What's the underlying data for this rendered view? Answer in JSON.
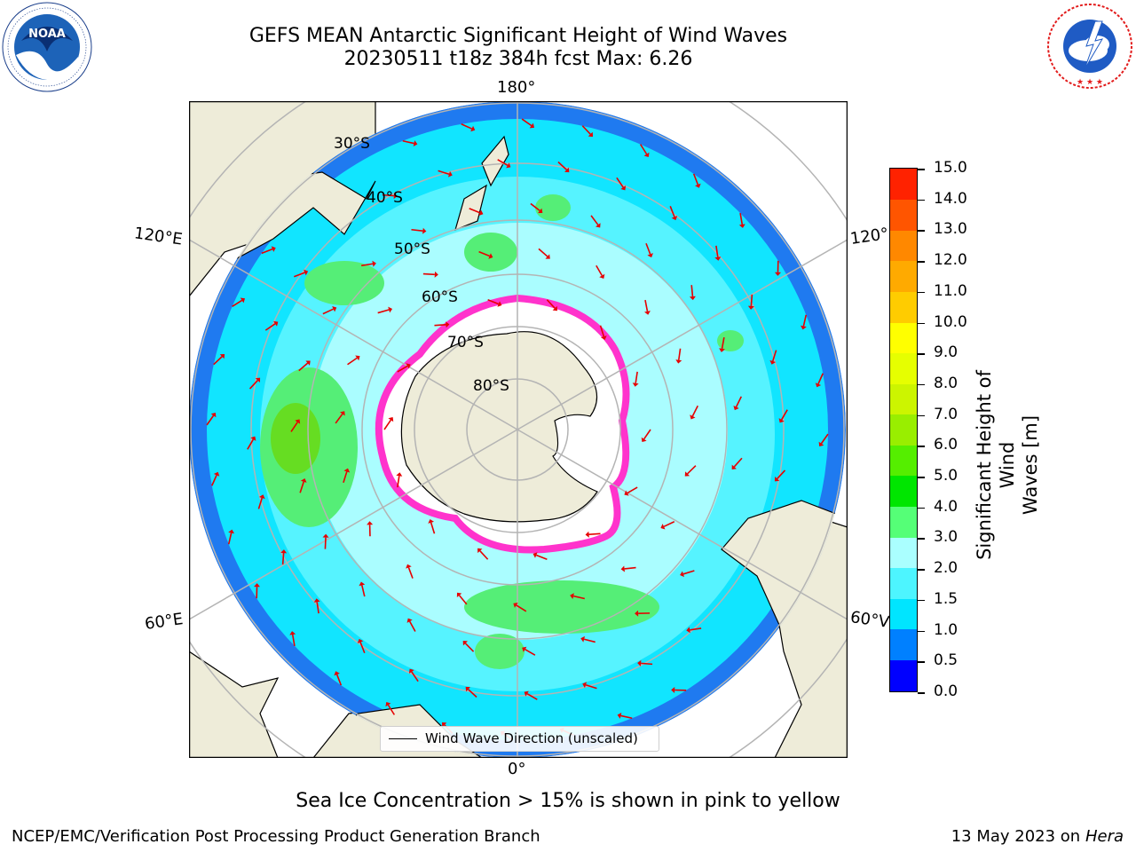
{
  "title": {
    "line1": "GEFS MEAN Antarctic Significant Height of Wind Waves",
    "line2": "20230511 t18z 384h fcst   Max: 6.26"
  },
  "logos": {
    "left": {
      "icon": "noaa-logo",
      "text": "NOAA",
      "ring_text": "NATIONAL OCEANIC AND ATMOSPHERIC ADMINISTRATION · U.S. DEPARTMENT OF COMMERCE"
    },
    "right": {
      "icon": "national-weather-service-logo",
      "ring_text": "NATIONAL WEATHER SERVICE"
    }
  },
  "map": {
    "projection": "south-polar-stereographic",
    "longitude_labels": {
      "top": "180°",
      "bottom": "0°",
      "upper_left": "120°E",
      "lower_left": "60°E",
      "upper_right": "120°",
      "lower_right": "60°V"
    },
    "latitude_labels": [
      "30°S",
      "40°S",
      "50°S",
      "60°S",
      "70°S",
      "80°S"
    ],
    "colors": {
      "land": "#eeecd9",
      "sea_ice": "#ffffff",
      "ice_edge": "#ff33cc",
      "grid": "#b4b4b4",
      "arrows": "#e60000"
    }
  },
  "legend": {
    "label": "Wind Wave Direction (unscaled)"
  },
  "colorbar": {
    "title_line1": "Significant Height of Wind",
    "title_line2": "Waves [m]",
    "levels": [
      "0.0",
      "0.5",
      "1.0",
      "1.5",
      "2.0",
      "3.0",
      "4.0",
      "5.0",
      "6.0",
      "7.0",
      "8.0",
      "9.0",
      "10.0",
      "11.0",
      "12.0",
      "13.0",
      "14.0",
      "15.0"
    ],
    "colors": [
      "#0000ff",
      "#0080ff",
      "#00e5ff",
      "#4df5ff",
      "#aaffff",
      "#55ff77",
      "#00e600",
      "#55ee00",
      "#99ee00",
      "#ccf500",
      "#e6ff00",
      "#ffff00",
      "#ffcc00",
      "#ffaa00",
      "#ff8800",
      "#ff5500",
      "#ff2200"
    ]
  },
  "footer": {
    "center": "Sea Ice Concentration > 15% is shown in pink to yellow",
    "left": "NCEP/EMC/Verification Post Processing Product Generation Branch",
    "right_date": "13 May 2023 on",
    "right_host": "Hera"
  }
}
